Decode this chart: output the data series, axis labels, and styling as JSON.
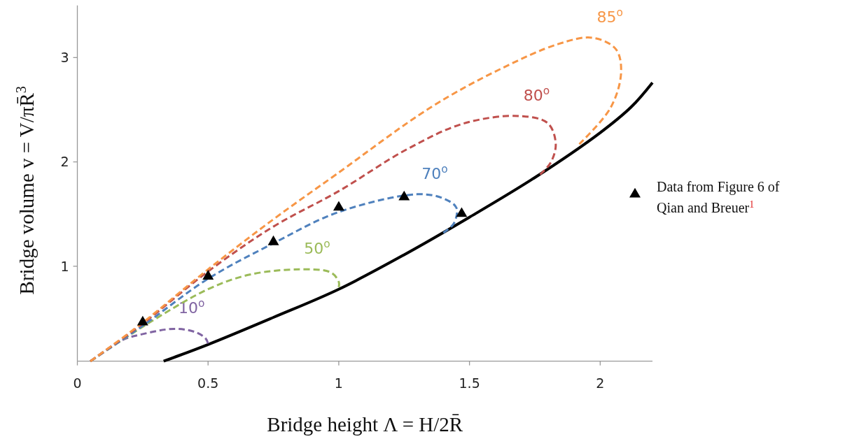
{
  "chart_data": {
    "type": "line",
    "xlabel": "Bridge height  Λ = H/2R̄",
    "ylabel": "Bridge volume  v = V/πR̄$^{3}$",
    "xlim": [
      0,
      2.2
    ],
    "ylim": [
      0.09,
      3.5
    ],
    "xticks": [
      0,
      0.5,
      1,
      1.5,
      2
    ],
    "yticks": [
      1,
      2,
      3
    ],
    "grid": false,
    "legend": "right",
    "series": [
      {
        "name": "10$^{o}$",
        "color": "#8064a2",
        "line_style": "dashed",
        "marker": "none",
        "x": [
          0.05,
          0.17,
          0.25,
          0.37,
          0.45,
          0.49,
          0.5
        ],
        "values": [
          0.09,
          0.29,
          0.35,
          0.4,
          0.37,
          0.31,
          0.26
        ]
      },
      {
        "name": "50$^{o}$",
        "color": "#9bbb59",
        "line_style": "dashed",
        "marker": "none",
        "x": [
          0.05,
          0.25,
          0.5,
          0.66,
          0.85,
          0.97,
          1.0,
          1.0
        ],
        "values": [
          0.09,
          0.42,
          0.78,
          0.92,
          0.97,
          0.94,
          0.85,
          0.8
        ]
      },
      {
        "name": "70$^{o}$",
        "color": "#4f81bd",
        "line_style": "dashed",
        "marker": "none",
        "x": [
          0.05,
          0.25,
          0.5,
          0.75,
          1.0,
          1.3,
          1.4,
          1.45,
          1.44,
          1.4
        ],
        "values": [
          0.09,
          0.43,
          0.88,
          1.22,
          1.52,
          1.69,
          1.65,
          1.56,
          1.41,
          1.32
        ]
      },
      {
        "name": "80$^{o}$",
        "color": "#c0504d",
        "line_style": "dashed",
        "marker": "none",
        "x": [
          0.05,
          0.25,
          0.5,
          0.75,
          1.0,
          1.26,
          1.48,
          1.69,
          1.8,
          1.83,
          1.81,
          1.77
        ],
        "values": [
          0.09,
          0.45,
          0.95,
          1.38,
          1.72,
          2.12,
          2.37,
          2.44,
          2.37,
          2.17,
          1.99,
          1.88
        ]
      },
      {
        "name": "85$^{o}$",
        "color": "#f79646",
        "line_style": "dashed",
        "marker": "none",
        "x": [
          0.05,
          0.25,
          0.5,
          0.75,
          0.99,
          1.35,
          1.61,
          1.84,
          1.97,
          2.06,
          2.08,
          2.04,
          1.92
        ],
        "values": [
          0.09,
          0.46,
          0.97,
          1.45,
          1.88,
          2.52,
          2.88,
          3.13,
          3.19,
          3.08,
          2.86,
          2.52,
          2.17
        ]
      },
      {
        "color": "#000000",
        "line_style": "solid",
        "marker": "none",
        "x": [
          0.33,
          0.5,
          0.75,
          1.0,
          1.25,
          1.5,
          1.75,
          2.0,
          2.12,
          2.2
        ],
        "values": [
          0.09,
          0.25,
          0.51,
          0.78,
          1.11,
          1.47,
          1.85,
          2.28,
          2.53,
          2.76
        ]
      },
      {
        "type": "scatter",
        "name": "Data from Figure 6 of Qian and Breuer$^{1}$",
        "color": "#000000",
        "marker": "triangle",
        "x": [
          0.25,
          0.5,
          0.75,
          1.0,
          1.25,
          1.47
        ],
        "values": [
          0.45,
          0.89,
          1.22,
          1.55,
          1.65,
          1.49
        ]
      }
    ]
  }
}
